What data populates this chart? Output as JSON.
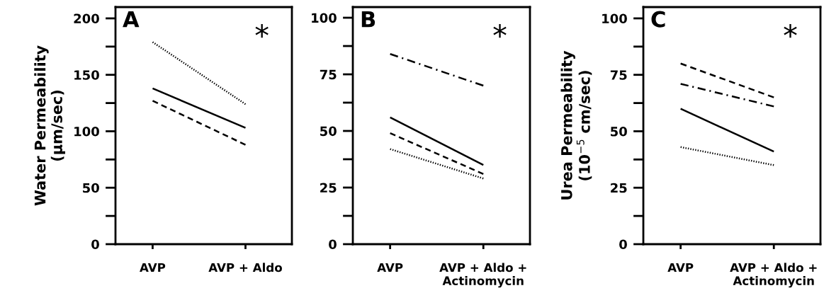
{
  "chart_data": [
    {
      "type": "line",
      "title": "A",
      "ylabel": "Water Permeability\n(µm/sec)",
      "categories": [
        "AVP",
        "AVP + Aldo"
      ],
      "ylim": [
        0,
        210
      ],
      "yticks": [
        0,
        {
          "value": 25,
          "label": null
        },
        50,
        {
          "value": 75,
          "label": null
        },
        100,
        {
          "value": 125,
          "label": null
        },
        150,
        {
          "value": 175,
          "label": null
        },
        200
      ],
      "annotations": [
        "*"
      ],
      "series": [
        {
          "color": "#000000",
          "line_style": "dotted",
          "values": [
            179,
            124
          ]
        },
        {
          "color": "#000000",
          "line_style": "solid",
          "values": [
            138,
            103
          ]
        },
        {
          "color": "#000000",
          "line_style": "dashed",
          "values": [
            127,
            88
          ]
        }
      ]
    },
    {
      "type": "line",
      "title": "B",
      "categories": [
        "AVP",
        "AVP + Aldo +\nActinomycin"
      ],
      "ylim": [
        0,
        104.7
      ],
      "yticks": [
        0,
        {
          "value": 12.5,
          "label": null
        },
        25,
        {
          "value": 37.5,
          "label": null
        },
        50,
        {
          "value": 62.5,
          "label": null
        },
        75,
        {
          "value": 87.5,
          "label": null
        },
        100
      ],
      "annotations": [
        "*"
      ],
      "series": [
        {
          "color": "#000000",
          "line_style": "dashdot",
          "values": [
            84,
            70
          ]
        },
        {
          "color": "#000000",
          "line_style": "solid",
          "values": [
            56,
            35
          ]
        },
        {
          "color": "#000000",
          "line_style": "dashed",
          "values": [
            49,
            31
          ]
        },
        {
          "color": "#000000",
          "line_style": "dotted",
          "values": [
            42,
            29
          ]
        }
      ]
    },
    {
      "type": "line",
      "title": "C",
      "ylabel": "Urea Permeability\n(10$^{−5}$ cm/sec)",
      "categories": [
        "AVP",
        "AVP + Aldo +\nActinomycin"
      ],
      "ylim": [
        0,
        105
      ],
      "yticks": [
        0,
        {
          "value": 12.5,
          "label": null
        },
        25,
        {
          "value": 37.5,
          "label": null
        },
        50,
        {
          "value": 62.5,
          "label": null
        },
        75,
        {
          "value": 87.5,
          "label": null
        },
        100
      ],
      "annotations": [
        "*"
      ],
      "series": [
        {
          "color": "#000000",
          "line_style": "dashed",
          "values": [
            80,
            65
          ]
        },
        {
          "color": "#000000",
          "line_style": "dashdot",
          "values": [
            71,
            61
          ]
        },
        {
          "color": "#000000",
          "line_style": "solid",
          "values": [
            60,
            41
          ]
        },
        {
          "color": "#000000",
          "line_style": "dotted",
          "values": [
            43,
            35
          ]
        }
      ]
    }
  ]
}
